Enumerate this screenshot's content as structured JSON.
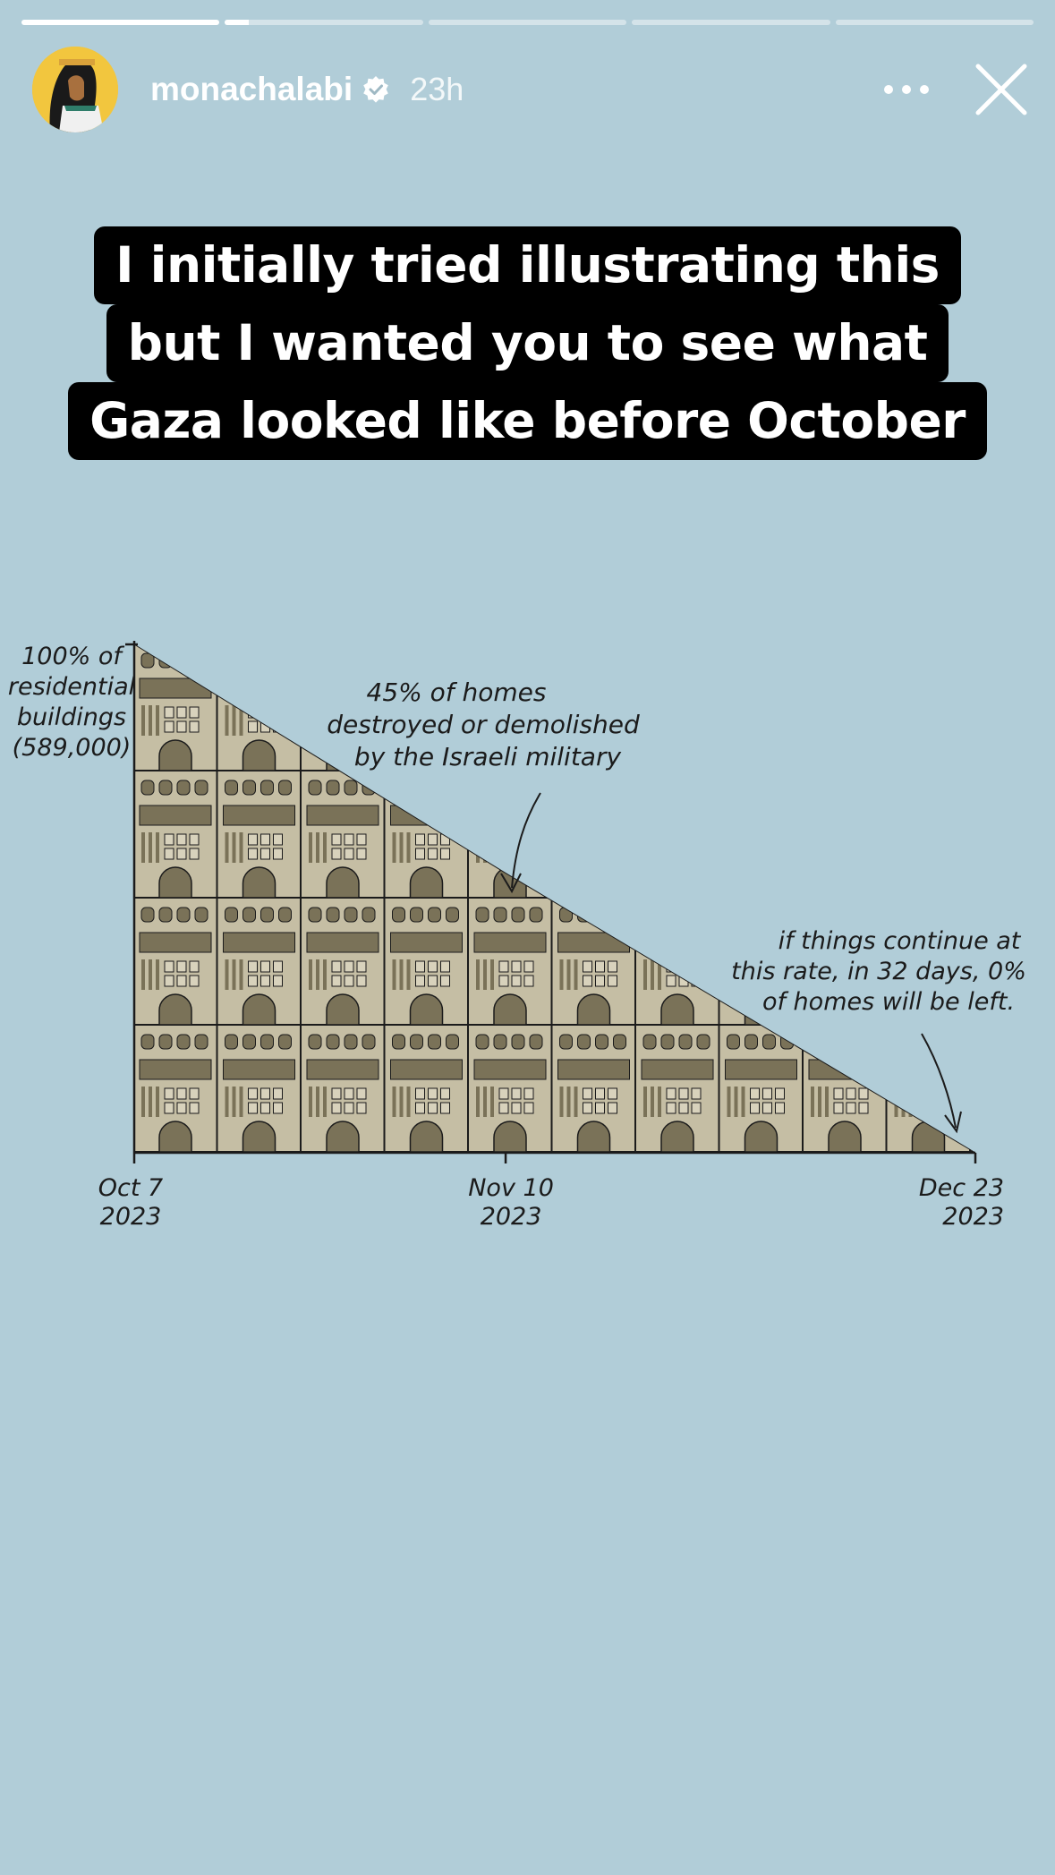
{
  "story": {
    "segments": [
      {
        "progress": 1.0
      },
      {
        "progress": 0.12
      },
      {
        "progress": 0
      },
      {
        "progress": 0
      },
      {
        "progress": 0
      }
    ],
    "username": "monachalabi",
    "verified": true,
    "time": "23h",
    "icons": {
      "more": "more-dots-icon",
      "close": "close-icon",
      "verified": "verified-badge-icon"
    }
  },
  "caption": {
    "line1": "I initially tried illustrating this",
    "line2": "but I wanted you to see what",
    "line3": "Gaza looked like before October"
  },
  "chart_data": {
    "type": "area",
    "title": "",
    "ylabel": [
      "100% of",
      "residential",
      "buildings",
      "(589,000)"
    ],
    "xlabel": "",
    "x_ticks": [
      {
        "label": [
          "Oct 7",
          "2023"
        ],
        "date": "2023-10-07"
      },
      {
        "label": [
          "Nov 10",
          "2023"
        ],
        "date": "2023-11-10"
      },
      {
        "label": [
          "Dec 23",
          "2023"
        ],
        "date": "2023-12-23"
      }
    ],
    "series": [
      {
        "points": [
          {
            "x": "2023-10-07",
            "y": 100
          },
          {
            "x": "2023-11-10",
            "y": 55
          },
          {
            "x": "2023-12-23",
            "y": 0
          }
        ]
      }
    ],
    "ylim": [
      0,
      100
    ],
    "annotations": [
      {
        "lines": [
          "45% of homes",
          "destroyed or demolished",
          "by the Israeli military"
        ]
      },
      {
        "lines": [
          "if things continue at",
          "this rate, in 32 days, 0%",
          "of homes will be left."
        ]
      }
    ],
    "colors": {
      "building_light": "#c5bea4",
      "building_dark": "#7a7258",
      "outline": "#1b1b1b"
    }
  }
}
